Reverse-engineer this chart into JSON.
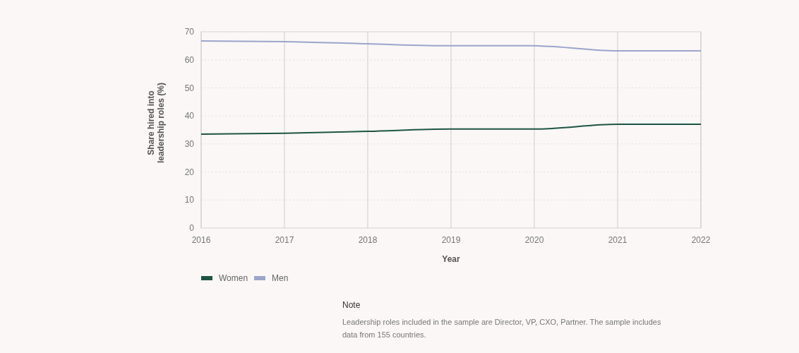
{
  "chart_data": {
    "type": "line",
    "xlabel": "Year",
    "ylabel": "Share hired into leadership roles (%)",
    "x": [
      2016,
      2017,
      2018,
      2019,
      2020,
      2021,
      2022
    ],
    "series": [
      {
        "name": "Women",
        "color": "#1f5444",
        "values": [
          33.5,
          33.8,
          34.5,
          35.3,
          35.3,
          37,
          37
        ]
      },
      {
        "name": "Men",
        "color": "#9ba5cc",
        "values": [
          66.7,
          66.5,
          65.7,
          65,
          65,
          63.2,
          63.2
        ]
      }
    ],
    "xlim": [
      2016,
      2022
    ],
    "xticks": [
      2016,
      2017,
      2018,
      2019,
      2020,
      2021,
      2022
    ],
    "ylim": [
      0,
      70
    ],
    "yticks": [
      0,
      10,
      20,
      30,
      40,
      50,
      60,
      70
    ],
    "grid": true,
    "legend": "bottom",
    "annotations": [
      "Note",
      "Leadership roles included in the sample are Director, VP, CXO, Partner. The sample includes data from 155 countries."
    ]
  }
}
